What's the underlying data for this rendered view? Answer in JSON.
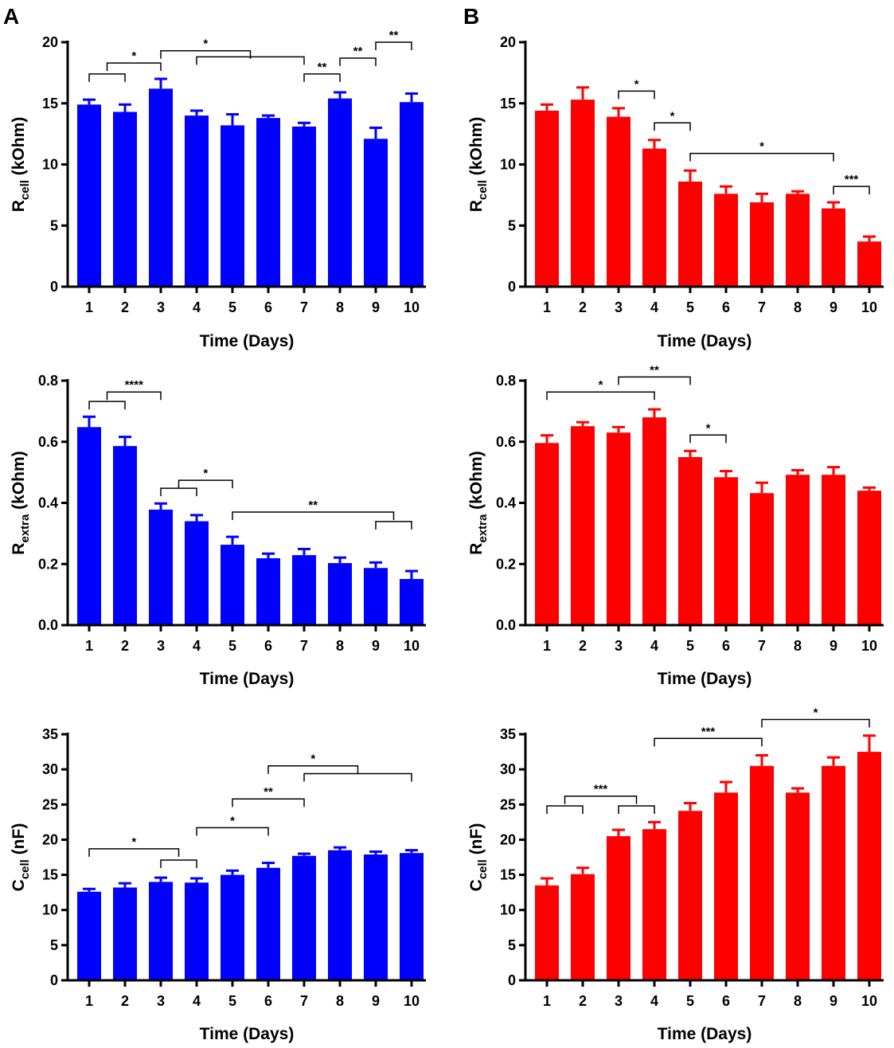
{
  "panel_labels": [
    "A",
    "B"
  ],
  "chart_data": [
    {
      "id": "A-rcell",
      "type": "bar",
      "color": "#0000ff",
      "categories": [
        "1",
        "2",
        "3",
        "4",
        "5",
        "6",
        "7",
        "8",
        "9",
        "10"
      ],
      "values": [
        14.9,
        14.3,
        16.2,
        14.0,
        13.2,
        13.8,
        13.1,
        15.4,
        12.1,
        15.1
      ],
      "errors": [
        0.4,
        0.6,
        0.8,
        0.4,
        0.9,
        0.2,
        0.3,
        0.5,
        0.9,
        0.7
      ],
      "ylim": [
        0,
        20
      ],
      "yticks": [
        "0",
        "5",
        "10",
        "15",
        "20"
      ],
      "xlabel": "Time (Days)",
      "ylabel_main": "R",
      "ylabel_sub": "cell",
      "ylabel_unit": " (kOhm)",
      "brackets": [
        {
          "from": 1,
          "to": 2,
          "y": 17.4,
          "label": ""
        },
        {
          "from": 1.5,
          "to": 3,
          "y": 18.3,
          "label": "*"
        },
        {
          "from": 4,
          "to": 7,
          "y": 18.8,
          "label": ""
        },
        {
          "from": 3,
          "to": 5.5,
          "y": 19.3,
          "label": "*"
        },
        {
          "from": 7,
          "to": 8,
          "y": 17.4,
          "label": "**"
        },
        {
          "from": 8,
          "to": 9,
          "y": 18.7,
          "label": "**"
        },
        {
          "from": 9,
          "to": 10,
          "y": 20.0,
          "label": "**"
        }
      ]
    },
    {
      "id": "B-rcell",
      "type": "bar",
      "color": "#ff0000",
      "categories": [
        "1",
        "2",
        "3",
        "4",
        "5",
        "6",
        "7",
        "8",
        "9",
        "10"
      ],
      "values": [
        14.4,
        15.3,
        13.9,
        11.3,
        8.6,
        7.6,
        6.9,
        7.6,
        6.4,
        3.7
      ],
      "errors": [
        0.5,
        1.0,
        0.7,
        0.7,
        0.9,
        0.6,
        0.7,
        0.2,
        0.5,
        0.4
      ],
      "ylim": [
        0,
        20
      ],
      "yticks": [
        "0",
        "5",
        "10",
        "15",
        "20"
      ],
      "xlabel": "Time (Days)",
      "ylabel_main": "R",
      "ylabel_sub": "cell",
      "ylabel_unit": " (kOhm)",
      "brackets": [
        {
          "from": 3,
          "to": 4,
          "y": 16.0,
          "label": "*"
        },
        {
          "from": 4,
          "to": 5,
          "y": 13.4,
          "label": "*"
        },
        {
          "from": 5,
          "to": 9,
          "y": 10.9,
          "label": "*"
        },
        {
          "from": 9,
          "to": 10,
          "y": 8.2,
          "label": "***"
        }
      ]
    },
    {
      "id": "A-rextra",
      "type": "bar",
      "color": "#0000ff",
      "categories": [
        "1",
        "2",
        "3",
        "4",
        "5",
        "6",
        "7",
        "8",
        "9",
        "10"
      ],
      "values": [
        0.648,
        0.586,
        0.378,
        0.34,
        0.263,
        0.219,
        0.229,
        0.203,
        0.187,
        0.151
      ],
      "errors": [
        0.034,
        0.03,
        0.02,
        0.02,
        0.026,
        0.015,
        0.02,
        0.018,
        0.018,
        0.026
      ],
      "ylim": [
        0,
        0.8
      ],
      "yticks": [
        "0.0",
        "0.2",
        "0.4",
        "0.6",
        "0.8"
      ],
      "xlabel": "Time (Days)",
      "ylabel_main": "R",
      "ylabel_sub": "extra",
      "ylabel_unit": "  (kOhm)",
      "brackets": [
        {
          "from": 1,
          "to": 2,
          "y": 0.732,
          "label": ""
        },
        {
          "from": 1.5,
          "to": 3,
          "y": 0.763,
          "label": "****"
        },
        {
          "from": 3,
          "to": 4,
          "y": 0.448,
          "label": ""
        },
        {
          "from": 3.5,
          "to": 5,
          "y": 0.474,
          "label": "*"
        },
        {
          "from": 9,
          "to": 10,
          "y": 0.339,
          "label": ""
        },
        {
          "from": 5,
          "to": 9.5,
          "y": 0.37,
          "label": "**"
        }
      ]
    },
    {
      "id": "B-rextra",
      "type": "bar",
      "color": "#ff0000",
      "categories": [
        "1",
        "2",
        "3",
        "4",
        "5",
        "6",
        "7",
        "8",
        "9",
        "10"
      ],
      "values": [
        0.596,
        0.651,
        0.63,
        0.68,
        0.55,
        0.484,
        0.432,
        0.492,
        0.492,
        0.44
      ],
      "errors": [
        0.025,
        0.013,
        0.018,
        0.026,
        0.02,
        0.02,
        0.034,
        0.015,
        0.025,
        0.01
      ],
      "ylim": [
        0,
        0.8
      ],
      "yticks": [
        "0.0",
        "0.2",
        "0.4",
        "0.6",
        "0.8"
      ],
      "xlabel": "Time (Days)",
      "ylabel_main": "R",
      "ylabel_sub": "extra",
      "ylabel_unit": "  (kOhm)",
      "brackets": [
        {
          "from": 1,
          "to": 4,
          "y": 0.763,
          "label": "*"
        },
        {
          "from": 3,
          "to": 5,
          "y": 0.812,
          "label": "**"
        },
        {
          "from": 5,
          "to": 6,
          "y": 0.622,
          "label": "*"
        }
      ]
    },
    {
      "id": "A-ccell",
      "type": "bar",
      "color": "#0000ff",
      "categories": [
        "1",
        "2",
        "3",
        "4",
        "5",
        "6",
        "7",
        "8",
        "9",
        "10"
      ],
      "values": [
        12.6,
        13.2,
        14.0,
        13.9,
        15.0,
        16.0,
        17.7,
        18.5,
        17.9,
        18.1
      ],
      "errors": [
        0.4,
        0.6,
        0.6,
        0.6,
        0.6,
        0.7,
        0.3,
        0.4,
        0.4,
        0.4
      ],
      "ylim": [
        0,
        35
      ],
      "yticks": [
        "0",
        "5",
        "10",
        "15",
        "20",
        "25",
        "30",
        "35"
      ],
      "xlabel": "Time (Days)",
      "ylabel_main": "C",
      "ylabel_sub": "cell",
      "ylabel_unit": " (nF)",
      "brackets": [
        {
          "from": 3,
          "to": 4,
          "y": 17.1,
          "label": ""
        },
        {
          "from": 1,
          "to": 3.5,
          "y": 18.7,
          "label": "*"
        },
        {
          "from": 4,
          "to": 6,
          "y": 21.7,
          "label": "*"
        },
        {
          "from": 5,
          "to": 7,
          "y": 25.8,
          "label": "**"
        },
        {
          "from": 7,
          "to": 10,
          "y": 29.4,
          "label": ""
        },
        {
          "from": 6,
          "to": 8.5,
          "y": 30.5,
          "label": "*"
        }
      ]
    },
    {
      "id": "B-ccell",
      "type": "bar",
      "color": "#ff0000",
      "categories": [
        "1",
        "2",
        "3",
        "4",
        "5",
        "6",
        "7",
        "8",
        "9",
        "10"
      ],
      "values": [
        13.5,
        15.1,
        20.5,
        21.5,
        24.1,
        26.7,
        30.5,
        26.7,
        30.5,
        32.5
      ],
      "errors": [
        1.0,
        0.9,
        0.9,
        1.0,
        1.1,
        1.5,
        1.5,
        0.6,
        1.2,
        2.3
      ],
      "ylim": [
        0,
        35
      ],
      "yticks": [
        "0",
        "5",
        "10",
        "15",
        "20",
        "25",
        "30",
        "35"
      ],
      "xlabel": "Time (Days)",
      "ylabel_main": "C",
      "ylabel_sub": "cell",
      "ylabel_unit": " (nF)",
      "brackets": [
        {
          "from": 1,
          "to": 2,
          "y": 24.8,
          "label": ""
        },
        {
          "from": 3,
          "to": 4,
          "y": 24.8,
          "label": ""
        },
        {
          "from": 1.5,
          "to": 3.5,
          "y": 26.2,
          "label": "***"
        },
        {
          "from": 4,
          "to": 7,
          "y": 34.4,
          "label": "***"
        },
        {
          "from": 7,
          "to": 10,
          "y": 37.1,
          "label": "*"
        }
      ]
    }
  ]
}
